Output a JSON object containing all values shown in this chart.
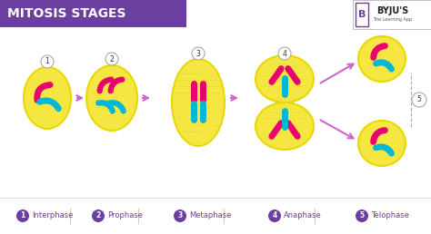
{
  "title": "MITOSIS STAGES",
  "title_bg": "#6b3fa0",
  "title_color": "#ffffff",
  "bg_color": "#ffffff",
  "cell_color": "#f5e642",
  "cell_edge": "#e8d800",
  "chromosome_pink": "#e8006e",
  "chromosome_blue": "#00b8d4",
  "arrow_color": "#cc66cc",
  "label_color": "#6b3fa0",
  "legend_items": [
    {
      "num": "1",
      "label": "Interphase"
    },
    {
      "num": "2",
      "label": "Prophase"
    },
    {
      "num": "3",
      "label": "Metaphase"
    },
    {
      "num": "4",
      "label": "Anaphase"
    },
    {
      "num": "5",
      "label": "Telophase"
    }
  ],
  "byjus_text": "BYJU'S",
  "byjus_sub": "The Learning App"
}
